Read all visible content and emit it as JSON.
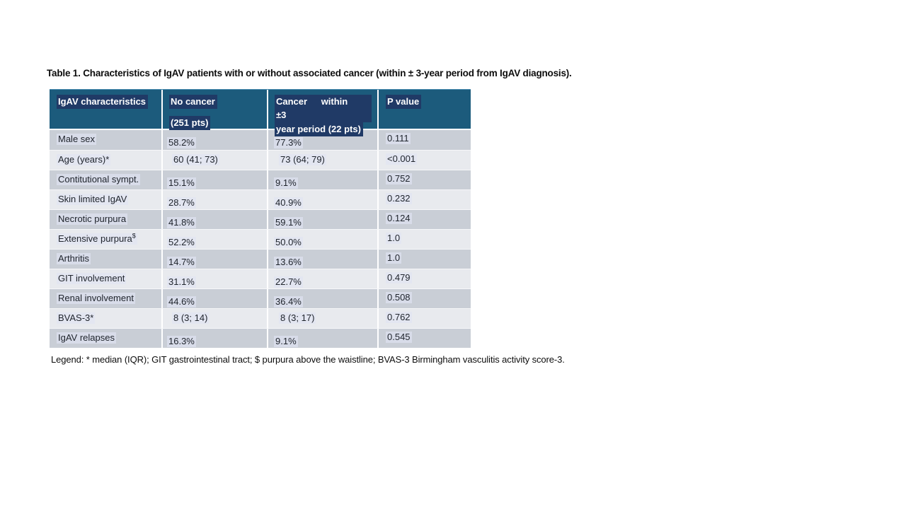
{
  "title": "Table 1. Characteristics of IgAV patients with or without associated cancer (within ± 3-year period from IgAV diagnosis).",
  "legend": "Legend: * median (IQR); GIT gastrointestinal tract; $ purpura above the waistline; BVAS-3 Birmingham vasculitis activity score-3.",
  "colors": {
    "header_bg": "#1C5B7C",
    "header_text_highlight": "#203a66",
    "row_gray": "#C9CED6",
    "row_light": "#E8EAEE",
    "body_text": "#20252d"
  },
  "table": {
    "header": {
      "col1": "IgAV characteristics",
      "col2_line1": "No cancer",
      "col2_line2": "(251 pts)",
      "col3_line1": "Cancer within ±3",
      "col3_line2": "year period (22 pts)",
      "col4": "P value"
    },
    "rows": [
      {
        "label": "Male sex",
        "sup": "",
        "no_cancer": "58.2%",
        "cancer": "77.3%",
        "p": "0.111",
        "pct": true
      },
      {
        "label": "Age (years)*",
        "sup": "",
        "no_cancer": "60 (41; 73)",
        "cancer": "73 (64; 79)",
        "p": "<0.001",
        "pct": false
      },
      {
        "label": "Contitutional sympt.",
        "sup": "",
        "no_cancer": "15.1%",
        "cancer": "9.1%",
        "p": "0.752",
        "pct": true
      },
      {
        "label": "Skin limited IgAV",
        "sup": "",
        "no_cancer": "28.7%",
        "cancer": "40.9%",
        "p": "0.232",
        "pct": true
      },
      {
        "label": "Necrotic purpura",
        "sup": "",
        "no_cancer": "41.8%",
        "cancer": "59.1%",
        "p": "0.124",
        "pct": true
      },
      {
        "label": "Extensive purpura",
        "sup": "$",
        "no_cancer": "52.2%",
        "cancer": "50.0%",
        "p": "1.0",
        "pct": true
      },
      {
        "label": "Arthritis",
        "sup": "",
        "no_cancer": "14.7%",
        "cancer": "13.6%",
        "p": "1.0",
        "pct": true
      },
      {
        "label": "GIT involvement",
        "sup": "",
        "no_cancer": "31.1%",
        "cancer": "22.7%",
        "p": "0.479",
        "pct": true
      },
      {
        "label": "Renal involvement",
        "sup": "",
        "no_cancer": "44.6%",
        "cancer": "36.4%",
        "p": "0.508",
        "pct": true
      },
      {
        "label": "BVAS-3*",
        "sup": "",
        "no_cancer": "8 (3; 14)",
        "cancer": "8 (3; 17)",
        "p": "0.762",
        "pct": false
      },
      {
        "label": "IgAV relapses",
        "sup": "",
        "no_cancer": "16.3%",
        "cancer": "9.1%",
        "p": "0.545",
        "pct": true
      }
    ]
  }
}
